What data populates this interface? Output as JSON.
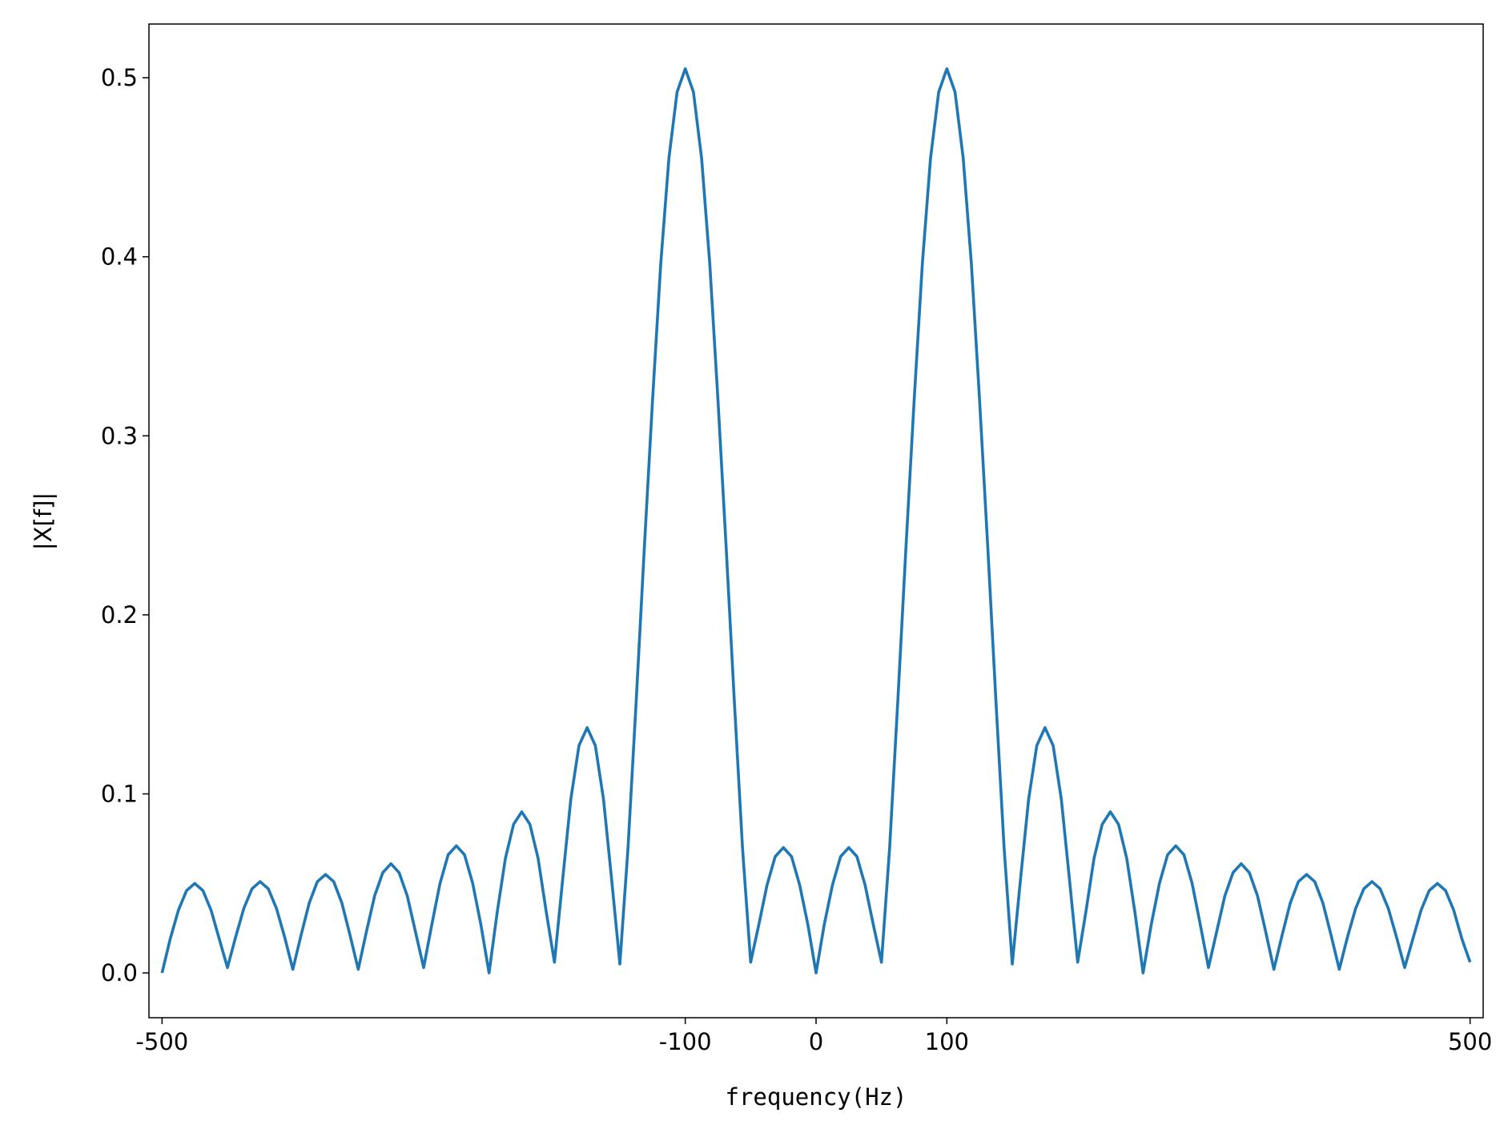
{
  "chart_data": {
    "type": "line",
    "xlabel": "frequency(Hz)",
    "ylabel": "|X[f]|",
    "xlim": [
      -510,
      510
    ],
    "ylim": [
      -0.025,
      0.53
    ],
    "xticks": [
      -500,
      -100,
      0,
      100,
      500
    ],
    "yticks": [
      {
        "value": 0,
        "label": "0.0"
      },
      0.1,
      0.2,
      0.3,
      0.4,
      0.5
    ],
    "grid": false,
    "x": [
      -500,
      -493.75,
      -487.5,
      -481.25,
      -475,
      -468.75,
      -462.5,
      -456.25,
      -450,
      -443.75,
      -437.5,
      -431.25,
      -425,
      -418.75,
      -412.5,
      -406.25,
      -400,
      -393.75,
      -387.5,
      -381.25,
      -375,
      -368.75,
      -362.5,
      -356.25,
      -350,
      -343.75,
      -337.5,
      -331.25,
      -325,
      -318.75,
      -312.5,
      -306.25,
      -300,
      -293.75,
      -287.5,
      -281.25,
      -275,
      -268.75,
      -262.5,
      -256.25,
      -250,
      -243.75,
      -237.5,
      -231.25,
      -225,
      -218.75,
      -212.5,
      -206.25,
      -200,
      -193.75,
      -187.5,
      -181.25,
      -175,
      -168.75,
      -162.5,
      -156.25,
      -150,
      -143.75,
      -137.5,
      -131.25,
      -125,
      -118.75,
      -112.5,
      -106.25,
      -100,
      -93.75,
      -87.5,
      -81.25,
      -75,
      -68.75,
      -62.5,
      -56.25,
      -50,
      -43.75,
      -37.5,
      -31.25,
      -25,
      -18.75,
      -12.5,
      -6.25,
      0,
      6.25,
      12.5,
      18.75,
      25,
      31.25,
      37.5,
      43.75,
      50,
      56.25,
      62.5,
      68.75,
      75,
      81.25,
      87.5,
      93.75,
      100,
      106.25,
      112.5,
      118.75,
      125,
      131.25,
      137.5,
      143.75,
      150,
      156.25,
      162.5,
      168.75,
      175,
      181.25,
      187.5,
      193.75,
      200,
      206.25,
      212.5,
      218.75,
      225,
      231.25,
      237.5,
      243.75,
      250,
      256.25,
      262.5,
      268.75,
      275,
      281.25,
      287.5,
      293.75,
      300,
      306.25,
      312.5,
      318.75,
      325,
      331.25,
      337.5,
      343.75,
      350,
      356.25,
      362.5,
      368.75,
      375,
      381.25,
      387.5,
      393.75,
      400,
      406.25,
      412.5,
      418.75,
      425,
      431.25,
      437.5,
      443.75,
      450,
      456.25,
      462.5,
      468.75,
      475,
      481.25,
      487.5,
      493.75,
      500
    ],
    "series": [
      {
        "name": "|X[f]|",
        "color": "#1f77b4",
        "values": [
          0,
          0.019,
          0.035,
          0.046,
          0.05,
          0.046,
          0.035,
          0.019,
          0.003,
          0.02,
          0.036,
          0.047,
          0.051,
          0.047,
          0.036,
          0.02,
          0.002,
          0.021,
          0.039,
          0.051,
          0.055,
          0.051,
          0.039,
          0.021,
          0.002,
          0.023,
          0.043,
          0.056,
          0.061,
          0.056,
          0.043,
          0.023,
          0.003,
          0.027,
          0.05,
          0.066,
          0.071,
          0.066,
          0.05,
          0.027,
          0,
          0.034,
          0.064,
          0.083,
          0.09,
          0.083,
          0.064,
          0.034,
          0.006,
          0.052,
          0.097,
          0.127,
          0.137,
          0.127,
          0.097,
          0.052,
          0.005,
          0.07,
          0.152,
          0.238,
          0.32,
          0.396,
          0.455,
          0.492,
          0.505,
          0.492,
          0.455,
          0.396,
          0.32,
          0.238,
          0.152,
          0.07,
          0.006,
          0.027,
          0.049,
          0.065,
          0.07,
          0.065,
          0.049,
          0.027,
          0,
          0.027,
          0.049,
          0.065,
          0.07,
          0.065,
          0.049,
          0.027,
          0.006,
          0.07,
          0.152,
          0.238,
          0.32,
          0.396,
          0.455,
          0.492,
          0.505,
          0.492,
          0.455,
          0.396,
          0.32,
          0.238,
          0.152,
          0.07,
          0.005,
          0.052,
          0.097,
          0.127,
          0.137,
          0.127,
          0.097,
          0.052,
          0.006,
          0.034,
          0.064,
          0.083,
          0.09,
          0.083,
          0.064,
          0.034,
          0,
          0.027,
          0.05,
          0.066,
          0.071,
          0.066,
          0.05,
          0.027,
          0.003,
          0.023,
          0.043,
          0.056,
          0.061,
          0.056,
          0.043,
          0.023,
          0.002,
          0.021,
          0.039,
          0.051,
          0.055,
          0.051,
          0.039,
          0.021,
          0.002,
          0.02,
          0.036,
          0.047,
          0.051,
          0.047,
          0.036,
          0.02,
          0.003,
          0.019,
          0.035,
          0.046,
          0.05,
          0.046,
          0.035,
          0.019,
          0.006
        ]
      }
    ]
  }
}
